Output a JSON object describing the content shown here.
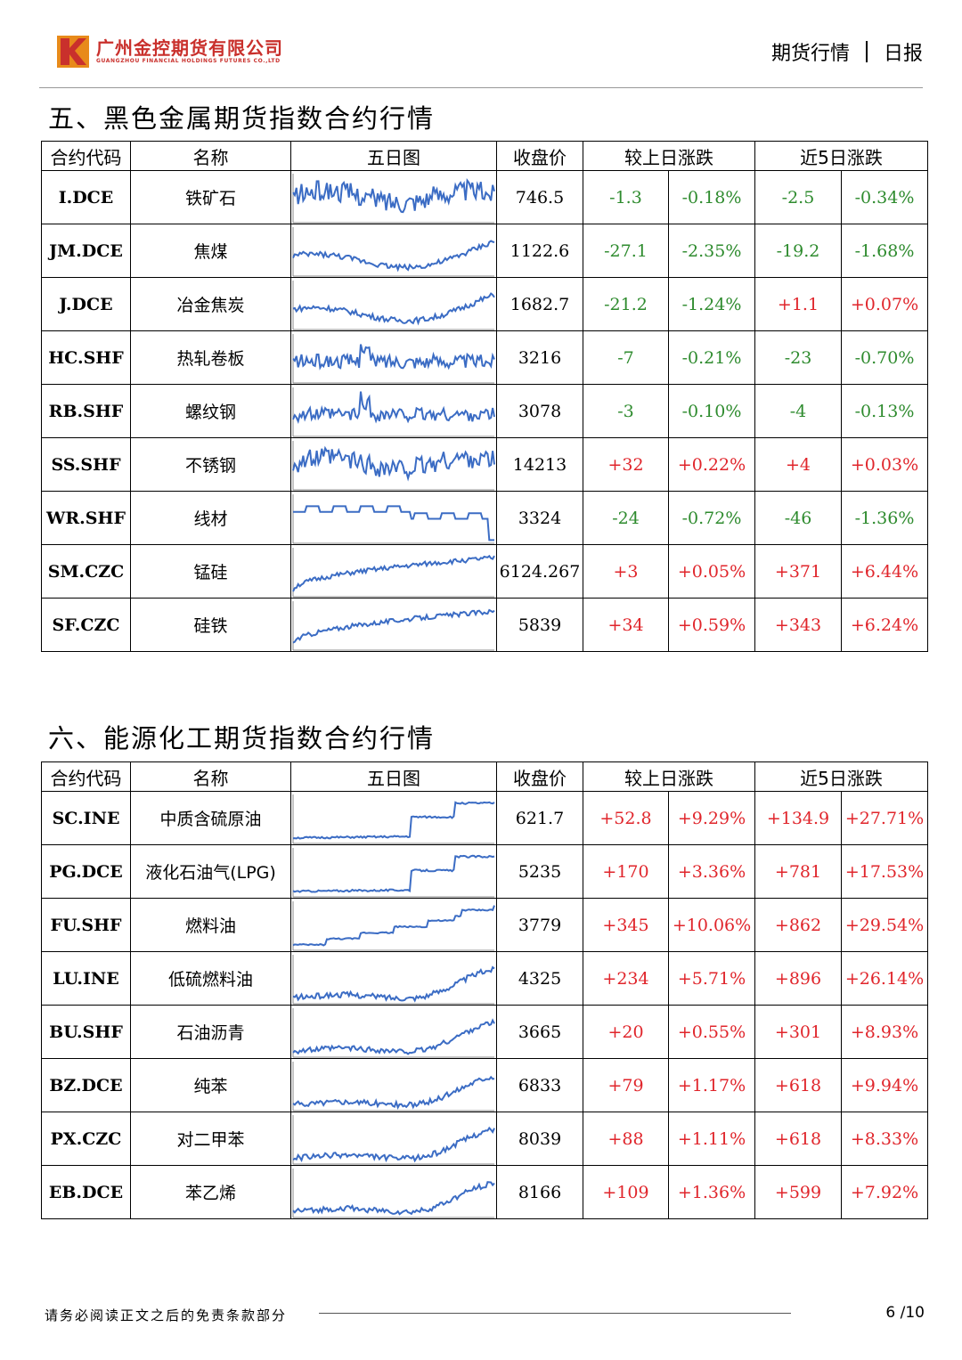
{
  "header": {
    "company_cn": "广州金控期货有限公司",
    "company_en": "GUANGZHOU FINANCIAL HOLDINGS FUTURES CO.,LTD",
    "report_type": "期货行情",
    "report_freq": "日报"
  },
  "colors": {
    "brand": "#c9302c",
    "up": "#e0252b",
    "down": "#2e8b2e",
    "spark": "#3b6cc4"
  },
  "columns": {
    "code": "合约代码",
    "name": "名称",
    "chart": "五日图",
    "close": "收盘价",
    "daily": "较上日涨跌",
    "five_day": "近5日涨跌"
  },
  "sections": [
    {
      "title": "五、黑色金属期货指数合约行情",
      "rows": [
        {
          "code": "I.DCE",
          "name": "铁矿石",
          "close": "746.5",
          "d_abs": "-1.3",
          "d_pct": "-0.18%",
          "f_abs": "-2.5",
          "f_pct": "-0.34%"
        },
        {
          "code": "JM.DCE",
          "name": "焦煤",
          "close": "1122.6",
          "d_abs": "-27.1",
          "d_pct": "-2.35%",
          "f_abs": "-19.2",
          "f_pct": "-1.68%"
        },
        {
          "code": "J.DCE",
          "name": "冶金焦炭",
          "close": "1682.7",
          "d_abs": "-21.2",
          "d_pct": "-1.24%",
          "f_abs": "+1.1",
          "f_pct": "+0.07%"
        },
        {
          "code": "HC.SHF",
          "name": "热轧卷板",
          "close": "3216",
          "d_abs": "-7",
          "d_pct": "-0.21%",
          "f_abs": "-23",
          "f_pct": "-0.70%"
        },
        {
          "code": "RB.SHF",
          "name": "螺纹钢",
          "close": "3078",
          "d_abs": "-3",
          "d_pct": "-0.10%",
          "f_abs": "-4",
          "f_pct": "-0.13%"
        },
        {
          "code": "SS.SHF",
          "name": "不锈钢",
          "close": "14213",
          "d_abs": "+32",
          "d_pct": "+0.22%",
          "f_abs": "+4",
          "f_pct": "+0.03%"
        },
        {
          "code": "WR.SHF",
          "name": "线材",
          "close": "3324",
          "d_abs": "-24",
          "d_pct": "-0.72%",
          "f_abs": "-46",
          "f_pct": "-1.36%"
        },
        {
          "code": "SM.CZC",
          "name": "锰硅",
          "close": "6124.267",
          "d_abs": "+3",
          "d_pct": "+0.05%",
          "f_abs": "+371",
          "f_pct": "+6.44%"
        },
        {
          "code": "SF.CZC",
          "name": "硅铁",
          "close": "5839",
          "d_abs": "+34",
          "d_pct": "+0.59%",
          "f_abs": "+343",
          "f_pct": "+6.24%"
        }
      ]
    },
    {
      "title": "六、能源化工期货指数合约行情",
      "rows": [
        {
          "code": "SC.INE",
          "name": "中质含硫原油",
          "close": "621.7",
          "d_abs": "+52.8",
          "d_pct": "+9.29%",
          "f_abs": "+134.9",
          "f_pct": "+27.71%"
        },
        {
          "code": "PG.DCE",
          "name": "液化石油气(LPG)",
          "close": "5235",
          "d_abs": "+170",
          "d_pct": "+3.36%",
          "f_abs": "+781",
          "f_pct": "+17.53%"
        },
        {
          "code": "FU.SHF",
          "name": "燃料油",
          "close": "3779",
          "d_abs": "+345",
          "d_pct": "+10.06%",
          "f_abs": "+862",
          "f_pct": "+29.54%"
        },
        {
          "code": "LU.INE",
          "name": "低硫燃料油",
          "close": "4325",
          "d_abs": "+234",
          "d_pct": "+5.71%",
          "f_abs": "+896",
          "f_pct": "+26.14%"
        },
        {
          "code": "BU.SHF",
          "name": "石油沥青",
          "close": "3665",
          "d_abs": "+20",
          "d_pct": "+0.55%",
          "f_abs": "+301",
          "f_pct": "+8.93%"
        },
        {
          "code": "BZ.DCE",
          "name": "纯苯",
          "close": "6833",
          "d_abs": "+79",
          "d_pct": "+1.17%",
          "f_abs": "+618",
          "f_pct": "+9.94%"
        },
        {
          "code": "PX.CZC",
          "name": "对二甲苯",
          "close": "8039",
          "d_abs": "+88",
          "d_pct": "+1.11%",
          "f_abs": "+618",
          "f_pct": "+8.33%"
        },
        {
          "code": "EB.DCE",
          "name": "苯乙烯",
          "close": "8166",
          "d_abs": "+109",
          "d_pct": "+1.36%",
          "f_abs": "+599",
          "f_pct": "+7.92%"
        }
      ]
    }
  ],
  "footer": {
    "note": "请务必阅读正文之后的免责条款部分",
    "page": "6 /10"
  }
}
